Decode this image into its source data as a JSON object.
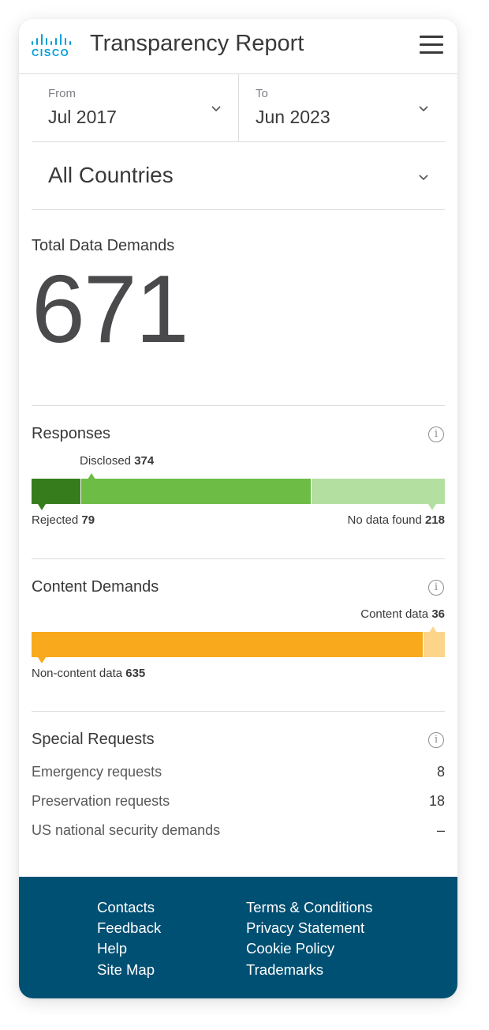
{
  "brand": {
    "logo_text": "CISCO",
    "color": "#049fd9"
  },
  "header": {
    "title": "Transparency Report",
    "menu_icon": "hamburger-menu-icon"
  },
  "filters": {
    "from": {
      "label": "From",
      "value": "Jul 2017"
    },
    "to": {
      "label": "To",
      "value": "Jun 2023"
    },
    "country": {
      "value": "All Countries"
    }
  },
  "total": {
    "title": "Total Data Demands",
    "value": "671"
  },
  "responses": {
    "title": "Responses",
    "rejected": {
      "label": "Rejected",
      "value": "79",
      "color": "#367c1c"
    },
    "disclosed": {
      "label": "Disclosed",
      "value": "374",
      "color": "#6cbc45"
    },
    "no_data": {
      "label": "No data found",
      "value": "218",
      "color": "#b3dfa0"
    }
  },
  "content": {
    "title": "Content Demands",
    "content_data": {
      "label": "Content data",
      "value": "36",
      "color": "#fcd58a"
    },
    "non_content": {
      "label": "Non-content data",
      "value": "635",
      "color": "#f8aa1c"
    }
  },
  "special": {
    "title": "Special Requests",
    "rows": [
      {
        "name": "Emergency requests",
        "count": "8"
      },
      {
        "name": "Preservation requests",
        "count": "18"
      },
      {
        "name": "US national security demands",
        "count": "–"
      }
    ]
  },
  "footer": {
    "col1": [
      "Contacts",
      "Feedback",
      "Help",
      "Site Map"
    ],
    "col2": [
      "Terms & Conditions",
      "Privacy Statement",
      "Cookie Policy",
      "Trademarks"
    ],
    "color": "#005073"
  }
}
